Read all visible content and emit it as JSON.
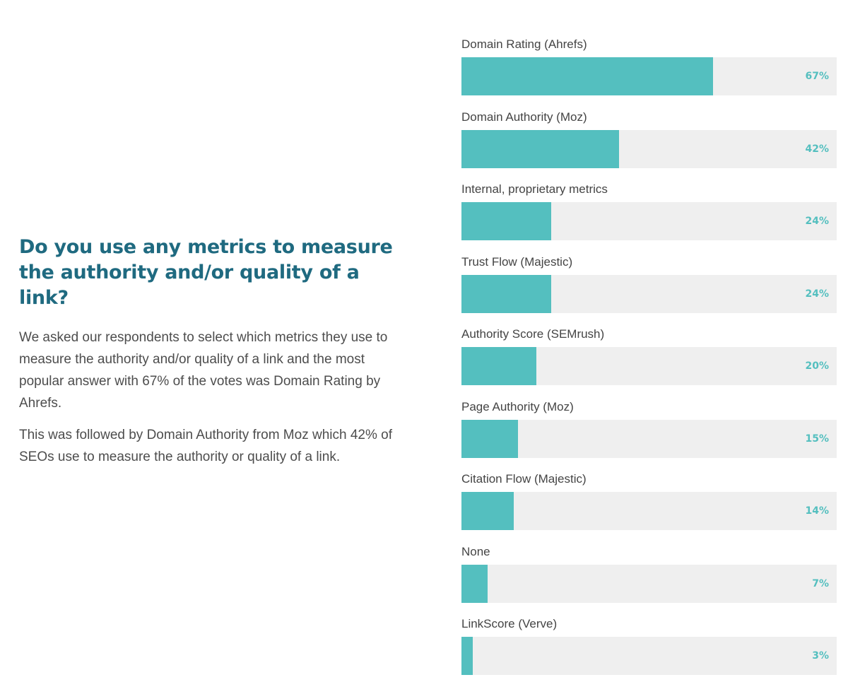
{
  "text": {
    "heading": "Do you use any metrics to measure the authority and/or quality of a link?",
    "paragraph1": "We asked our respondents to select which metrics they use to measure the authority and/or quality of a link and the most popular answer with 67% of the votes was Domain Rating by Ahrefs.",
    "paragraph2": "This was followed by Domain Authority from Moz which 42% of SEOs use to measure the authority or quality of a link."
  },
  "colors": {
    "bar": "#54bfbf",
    "track": "#efefef",
    "value_text": "#54bfbf",
    "heading": "#1f6a80"
  },
  "chart_data": {
    "type": "bar",
    "orientation": "horizontal",
    "title": "",
    "xlabel": "",
    "ylabel": "",
    "xlim": [
      0,
      100
    ],
    "categories": [
      "Domain Rating (Ahrefs)",
      "Domain Authority (Moz)",
      "Internal, proprietary metrics",
      "Trust Flow (Majestic)",
      "Authority Score (SEMrush)",
      "Page Authority (Moz)",
      "Citation Flow (Majestic)",
      "None",
      "LinkScore (Verve)"
    ],
    "values": [
      67,
      42,
      24,
      24,
      20,
      15,
      14,
      7,
      3
    ],
    "value_labels": [
      "67%",
      "42%",
      "24%",
      "24%",
      "20%",
      "15%",
      "14%",
      "7%",
      "3%"
    ]
  }
}
